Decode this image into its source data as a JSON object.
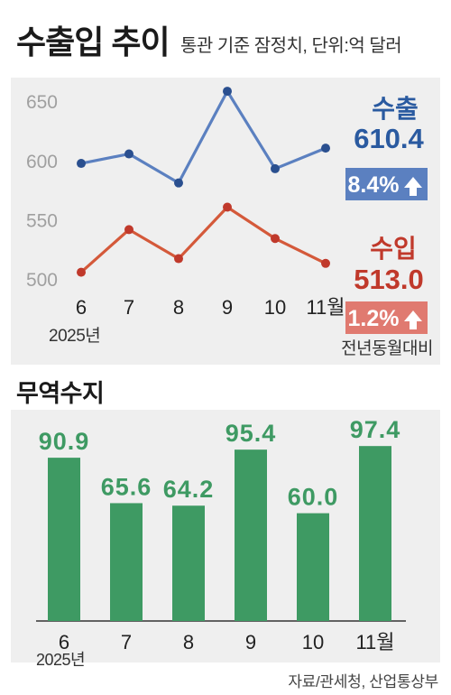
{
  "header": {
    "title": "수출입 추이",
    "subtitle": "통관 기준 잠정치, 단위:억 달러"
  },
  "source": "자료/관세청, 산업통상부",
  "chart_data": [
    {
      "type": "line",
      "categories": [
        "6",
        "7",
        "8",
        "9",
        "10",
        "11월"
      ],
      "year_label": "2025년",
      "yticks": [
        500,
        550,
        600,
        650
      ],
      "ylim": [
        493,
        670
      ],
      "grid": false,
      "series": [
        {
          "name": "수출",
          "values": [
            597.5,
            605.5,
            581.0,
            658.5,
            593.0,
            610.4
          ],
          "color": "#5b80c0",
          "latest_label": "610.4",
          "change_label": "8.4%",
          "label_color": "#2a5aa0",
          "badge_color": "#5b80c0"
        },
        {
          "name": "수입",
          "values": [
            505.5,
            541.5,
            517.0,
            560.5,
            534.0,
            513.0
          ],
          "color": "#d4593a",
          "latest_label": "513.0",
          "change_label": "1.2%",
          "label_color": "#c0392b",
          "badge_color": "#e07a70"
        }
      ],
      "change_note": "전년동월대비"
    },
    {
      "type": "bar",
      "title": "무역수지",
      "categories": [
        "6",
        "7",
        "8",
        "9",
        "10",
        "11월"
      ],
      "year_label": "2025년",
      "values": [
        90.9,
        65.6,
        64.2,
        95.4,
        60.0,
        97.4
      ],
      "value_labels": [
        "90.9",
        "65.6",
        "64.2",
        "95.4",
        "60.0",
        "97.4"
      ],
      "ylim": [
        0,
        100
      ],
      "color": "#3e9a63"
    }
  ]
}
